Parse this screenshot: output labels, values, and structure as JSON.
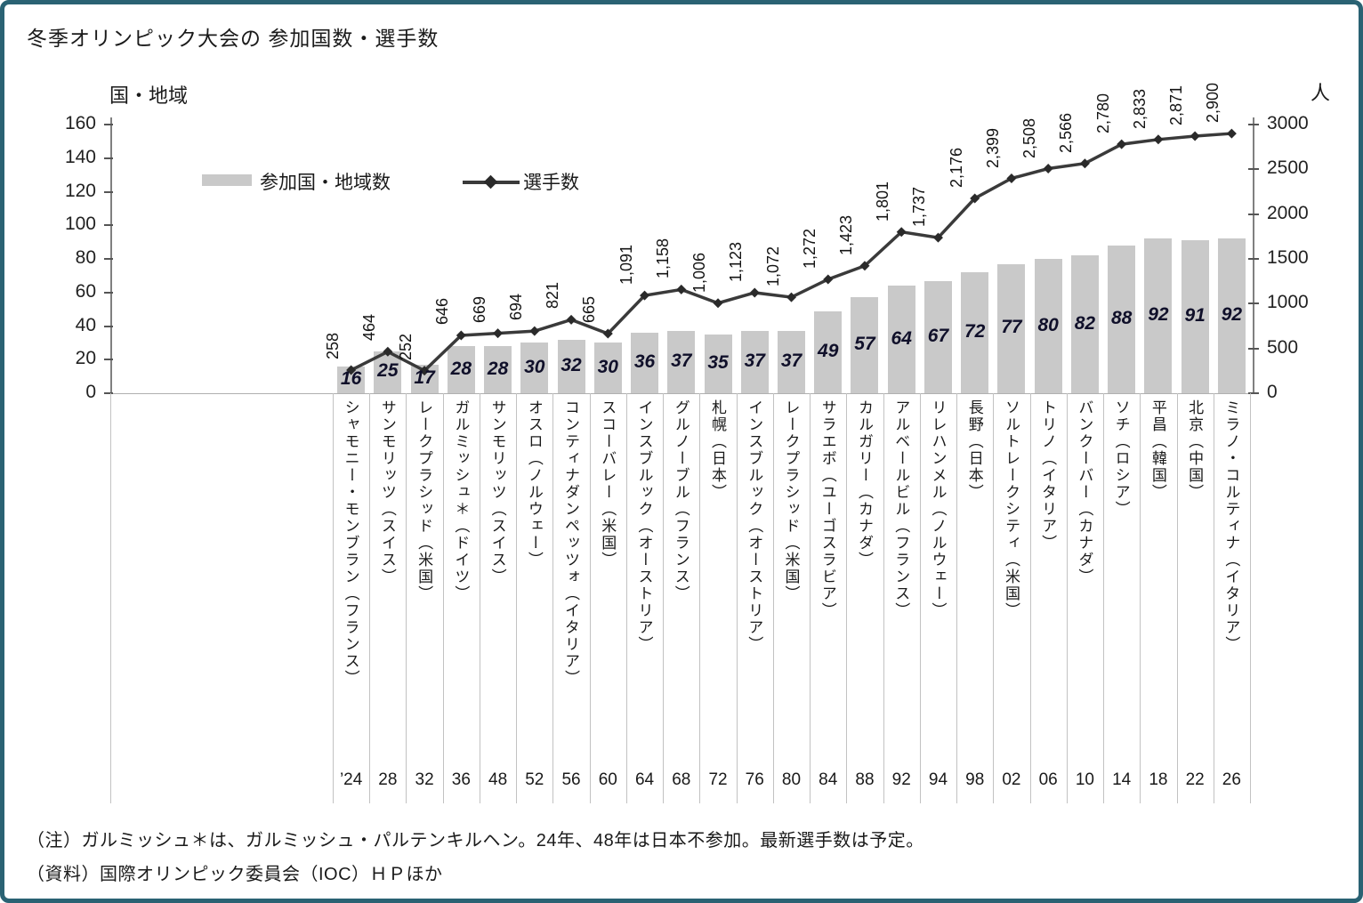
{
  "title": "冬季オリンピック大会の 参加国数・選手数",
  "left_axis": {
    "caption": "国・地域"
  },
  "right_axis": {
    "caption": "人"
  },
  "legend": {
    "bar_label": "参加国・地域数",
    "line_label": "選手数"
  },
  "notes": [
    "（注）ガルミッシュ＊は、ガルミッシュ・パルテンキルヘン。24年、48年は日本不参加。最新選手数は予定。",
    "（資料）国際オリンピック委員会（IOC）ＨＰほか"
  ],
  "colors": {
    "frame_border": "#2a6273",
    "bar_fill": "#c9c9c9",
    "line_color": "#3a3a3a",
    "marker_color": "#2a2a2a",
    "bar_label_color": "#10102a"
  },
  "chart_data": {
    "type": "bar",
    "subtype": "combo-bar-line-dual-axis",
    "title": "冬季オリンピック大会の 参加国数・選手数",
    "categories": [
      "シャモニー・モンブラン（フランス）",
      "サンモリッツ（スイス）",
      "レークプラシッド（米国）",
      "ガルミッシュ＊（ドイツ）",
      "サンモリッツ（スイス）",
      "オスロ（ノルウェー）",
      "コンティナダンペッツォ（イタリア）",
      "スコーバレー（米国）",
      "インスブルック（オーストリア）",
      "グルノーブル（フランス）",
      "札幌（日本）",
      "インスブルック（オーストリア）",
      "レークプラシッド（米国）",
      "サラエボ（ユーゴスラビア）",
      "カルガリー（カナダ）",
      "アルベールビル（フランス）",
      "リレハンメル（ノルウェー）",
      "長野（日本）",
      "ソルトレークシティ（米国）",
      "トリノ（イタリア）",
      "バンクーバー（カナダ）",
      "ソチ（ロシア）",
      "平昌（韓国）",
      "北京（中国）",
      "ミラノ・コルティナ（イタリア）"
    ],
    "years": [
      "’24",
      "28",
      "32",
      "36",
      "48",
      "52",
      "56",
      "60",
      "64",
      "68",
      "72",
      "76",
      "80",
      "84",
      "88",
      "92",
      "94",
      "98",
      "02",
      "06",
      "10",
      "14",
      "18",
      "22",
      "26"
    ],
    "series": [
      {
        "name": "参加国・地域数",
        "type": "bar",
        "axis": "left",
        "values": [
          16,
          25,
          17,
          28,
          28,
          30,
          32,
          30,
          36,
          37,
          35,
          37,
          37,
          49,
          57,
          64,
          67,
          72,
          77,
          80,
          82,
          88,
          92,
          91,
          92
        ]
      },
      {
        "name": "選手数",
        "type": "line",
        "axis": "right",
        "values": [
          258,
          464,
          252,
          646,
          669,
          694,
          821,
          665,
          1091,
          1158,
          1006,
          1123,
          1072,
          1272,
          1423,
          1801,
          1737,
          2176,
          2399,
          2508,
          2566,
          2780,
          2833,
          2871,
          2900
        ],
        "labels": [
          "258",
          "464",
          "252",
          "646",
          "669",
          "694",
          "821",
          "665",
          "1,091",
          "1,158",
          "1,006",
          "1,123",
          "1,072",
          "1,272",
          "1,423",
          "1,801",
          "1,737",
          "2,176",
          "2,399",
          "2,508",
          "2,566",
          "2,780",
          "2,833",
          "2,871",
          "2,900"
        ]
      }
    ],
    "xlabel": "",
    "ylabel_left": "国・地域",
    "ylabel_right": "人",
    "left_ylim": [
      0,
      160
    ],
    "right_ylim": [
      0,
      3000
    ],
    "left_ticks": [
      0,
      20,
      40,
      60,
      80,
      100,
      120,
      140,
      160
    ],
    "right_ticks": [
      0,
      500,
      1000,
      1500,
      2000,
      2500,
      3000
    ],
    "grid": false,
    "legend_position": "inside-top-left"
  }
}
